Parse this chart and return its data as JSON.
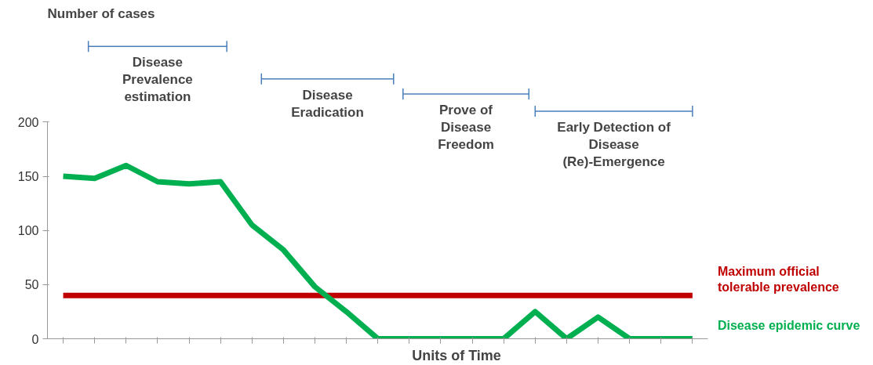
{
  "chart_data": {
    "type": "line",
    "title": "Number of cases",
    "xlabel": "Units of Time",
    "categories": [
      null,
      null,
      null,
      null,
      null,
      null,
      null,
      null,
      null,
      null,
      null,
      null,
      null,
      null,
      null,
      null,
      null,
      null,
      null,
      null,
      null
    ],
    "series": [
      {
        "name": "Maximum official tolerable prevalence",
        "color": "#c00000",
        "values": [
          40,
          40,
          40,
          40,
          40,
          40,
          40,
          40,
          40,
          40,
          40,
          40,
          40,
          40,
          40,
          40,
          40,
          40,
          40,
          40,
          40
        ]
      },
      {
        "name": "Disease epidemic curve",
        "color": "#00b050",
        "values": [
          150,
          148,
          160,
          145,
          143,
          145,
          105,
          82,
          48,
          25,
          0,
          0,
          0,
          0,
          0,
          25,
          0,
          20,
          0,
          0,
          0
        ]
      }
    ],
    "ylim": [
      0,
      200
    ],
    "yticks": [
      0,
      50,
      100,
      150,
      200
    ],
    "grid": false,
    "legend": false,
    "marker": "none",
    "line_style": "solid",
    "annotations": [
      "Disease Prevalence estimation",
      "Disease Eradication",
      "Prove of Disease Freedom",
      "Early Detection of Disease (Re)-Emergence"
    ]
  }
}
